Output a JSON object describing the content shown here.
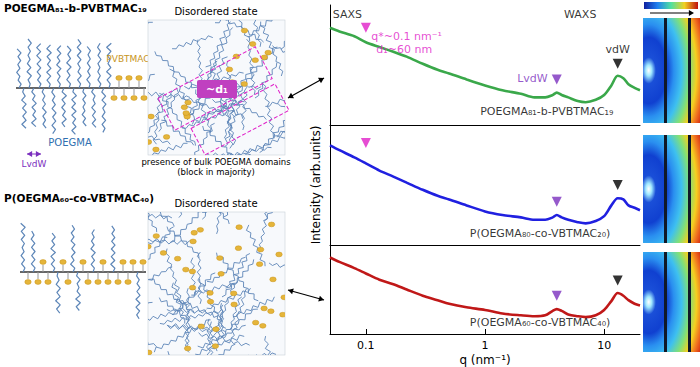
{
  "chart_data": [
    {
      "type": "line",
      "log": "x",
      "color": "#3aa84a",
      "tick_labels": false,
      "grid": false,
      "xlim": [
        0.05,
        20
      ],
      "ylim": [
        0,
        10
      ],
      "x": [
        0.05,
        0.06,
        0.08,
        0.1,
        0.13,
        0.17,
        0.22,
        0.3,
        0.4,
        0.5,
        0.7,
        1,
        1.4,
        2,
        2.6,
        3.2,
        3.7,
        4,
        4.4,
        5,
        6,
        7,
        8.5,
        10,
        11.5,
        13,
        14.5,
        16,
        18,
        20
      ],
      "values": [
        8.1,
        7.8,
        7.4,
        6.9,
        6.5,
        6.1,
        5.7,
        5.1,
        4.6,
        4.3,
        3.8,
        3.3,
        2.9,
        2.6,
        2.3,
        2.3,
        2.5,
        2.7,
        2.5,
        2.3,
        2.0,
        1.9,
        2.1,
        2.5,
        3.3,
        4.1,
        3.9,
        3.4,
        3.1,
        2.9
      ],
      "markers": [
        {
          "x": 0.1,
          "y": 8.1,
          "color": "#e020c8",
          "marker": "triangle"
        },
        {
          "x": 4,
          "y": 3.8,
          "color": "#7b2fbe",
          "marker": "triangle"
        },
        {
          "x": 13,
          "y": 5.1,
          "color": "#000000",
          "marker": "triangle"
        }
      ],
      "annotations": [
        {
          "text": "SAXS",
          "x": 0.07,
          "y": 9.2,
          "color": "#000000"
        },
        {
          "text": "WAXS",
          "x": 6.3,
          "y": 9.2,
          "color": "#000000"
        },
        {
          "text": "q*~0.1 nm⁻¹",
          "x": 0.22,
          "y": 7.4,
          "color": "#e020c8"
        },
        {
          "text": "d₁~60 nm",
          "x": 0.21,
          "y": 6.3,
          "color": "#e020c8"
        },
        {
          "text": "LvdW",
          "x": 2.5,
          "y": 3.9,
          "color": "#7b2fbe"
        },
        {
          "text": "vdW",
          "x": 13,
          "y": 6.3,
          "color": "#000000"
        },
        {
          "text": "POEGMA₈₁-b-PVBTMAC₁₉",
          "x": 3.3,
          "y": 1.1,
          "color": "#000000"
        }
      ]
    },
    {
      "type": "line",
      "log": "x",
      "color": "#2020e0",
      "tick_labels": false,
      "grid": false,
      "ylabel": "Intensity (arb.units)",
      "xlim": [
        0.05,
        20
      ],
      "ylim": [
        0,
        10
      ],
      "x": [
        0.05,
        0.06,
        0.08,
        0.1,
        0.13,
        0.17,
        0.22,
        0.3,
        0.4,
        0.5,
        0.7,
        1,
        1.4,
        2,
        2.6,
        3.2,
        3.7,
        4,
        4.4,
        5,
        6,
        7,
        8.5,
        10,
        11.5,
        13,
        14.5,
        16,
        18,
        20
      ],
      "values": [
        8.3,
        7.9,
        7.3,
        6.8,
        6.2,
        5.7,
        5.2,
        4.6,
        4.1,
        3.8,
        3.3,
        2.8,
        2.5,
        2.3,
        2.1,
        2.1,
        2.3,
        2.5,
        2.3,
        2.1,
        1.9,
        1.8,
        2.0,
        2.4,
        3.3,
        3.9,
        3.8,
        3.3,
        3.1,
        2.9
      ],
      "markers": [
        {
          "x": 0.1,
          "y": 8.5,
          "color": "#e020c8",
          "marker": "triangle"
        },
        {
          "x": 4,
          "y": 3.6,
          "color": "#7b2fbe",
          "marker": "triangle"
        },
        {
          "x": 13,
          "y": 5.0,
          "color": "#000000",
          "marker": "triangle"
        }
      ],
      "annotations": [
        {
          "text": "P(OEGMA₈₀-co-VBTMAC₂₀)",
          "x": 2.9,
          "y": 1.0,
          "color": "#000000"
        }
      ]
    },
    {
      "type": "line",
      "log": "x",
      "color": "#c01818",
      "tick_labels": "x",
      "grid": false,
      "xlabel": "q (nm⁻¹)",
      "xlim": [
        0.05,
        20
      ],
      "xticks": [
        0.1,
        1,
        10
      ],
      "ylim": [
        0,
        10
      ],
      "x": [
        0.05,
        0.06,
        0.08,
        0.1,
        0.13,
        0.17,
        0.22,
        0.3,
        0.4,
        0.5,
        0.7,
        1,
        1.4,
        2,
        2.6,
        3.2,
        3.7,
        4,
        4.4,
        5,
        6,
        7,
        8.5,
        10,
        11.5,
        13,
        14.5,
        16,
        18,
        20
      ],
      "values": [
        8.6,
        8.1,
        7.4,
        6.8,
        6.1,
        5.6,
        5.0,
        4.3,
        3.8,
        3.4,
        3.0,
        2.7,
        2.3,
        2.1,
        2.0,
        2.1,
        2.6,
        2.8,
        2.6,
        2.2,
        2.0,
        1.9,
        2.1,
        2.7,
        3.7,
        4.6,
        4.3,
        3.8,
        3.4,
        3.2
      ],
      "markers": [
        {
          "x": 4,
          "y": 4.3,
          "color": "#7b2fbe",
          "marker": "triangle"
        },
        {
          "x": 13,
          "y": 6.0,
          "color": "#000000",
          "marker": "triangle"
        }
      ],
      "annotations": [
        {
          "text": "P(OEGMA₆₀-co-VBTMAC₄₀)",
          "x": 2.9,
          "y": 1.3,
          "color": "#000000"
        }
      ]
    }
  ],
  "schematic": {
    "block": {
      "title": "POEGMA₈₁-b-PVBTMAC₁₉",
      "major_block": "POEGMA",
      "minor_block": "PVBTMAC",
      "spacing": "LvdW",
      "state": "Disordered state",
      "distance": "~d₁",
      "note": [
        "presence of bulk POEGMA domains",
        "(block in majority)"
      ]
    },
    "random": {
      "title": "P(OEGMA₆₀-co-VBTMAC₄₀)",
      "state": "Disordered state"
    }
  }
}
